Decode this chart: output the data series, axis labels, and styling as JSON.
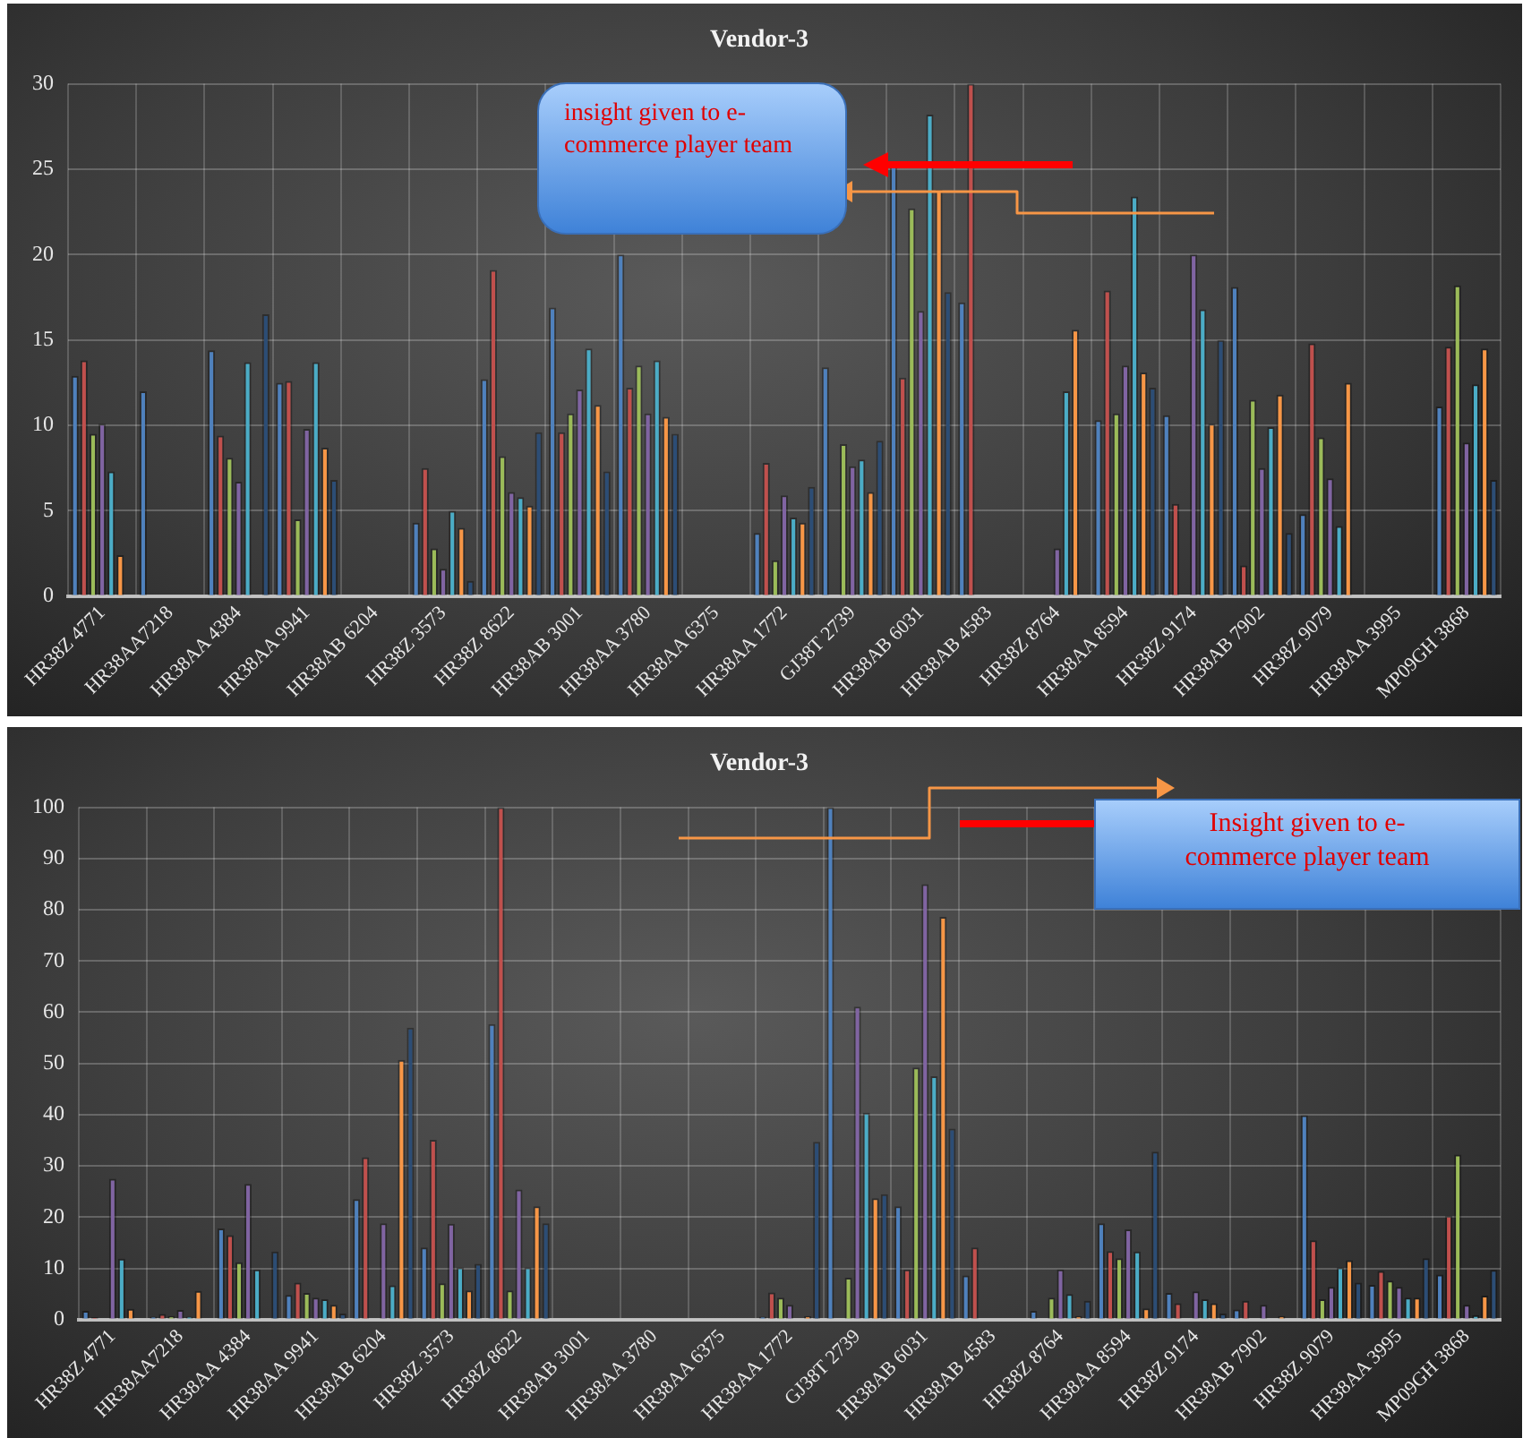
{
  "chart_data": [
    {
      "type": "bar",
      "title": "Vendor-3",
      "categories": [
        "HR38Z 4771",
        "HR38AA7218",
        "HR38AA 4384",
        "HR38AA 9941",
        "HR38AB 6204",
        "HR38Z 3573",
        "HR38Z 8622",
        "HR38AB 3001",
        "HR38AA 3780",
        "HR38AA 6375",
        "HR38AA 1772",
        "GJ38T 2739",
        "HR38AB 6031",
        "HR38AB 4583",
        "HR38Z 8764",
        "HR38AA 8594",
        "HR38Z 9174",
        "HR38AB 7902",
        "HR38Z 9079",
        "HR38AA 3995",
        "MP09GH 3868"
      ],
      "series": [
        {
          "color": "#4f81bd",
          "values": [
            12.9,
            12,
            14.4,
            12.5,
            null,
            4.3,
            12.7,
            16.9,
            20,
            null,
            3.7,
            13.4,
            25.2,
            17.2,
            null,
            10.3,
            10.6,
            18.1,
            4.8,
            null,
            11.1
          ]
        },
        {
          "color": "#c0504d",
          "values": [
            13.8,
            null,
            9.4,
            12.6,
            null,
            7.5,
            19.1,
            9.6,
            12.2,
            null,
            7.8,
            null,
            12.8,
            30,
            null,
            17.9,
            5.4,
            1.8,
            14.8,
            null,
            14.6
          ]
        },
        {
          "color": "#9bbb59",
          "values": [
            9.5,
            null,
            8.1,
            4.5,
            null,
            2.8,
            8.2,
            10.7,
            13.5,
            null,
            2.1,
            8.9,
            22.7,
            null,
            null,
            10.7,
            null,
            11.5,
            9.3,
            null,
            18.2
          ]
        },
        {
          "color": "#8064a2",
          "values": [
            10.1,
            null,
            6.7,
            9.8,
            null,
            1.6,
            6.1,
            12.1,
            10.7,
            null,
            5.9,
            7.6,
            16.7,
            null,
            2.8,
            13.5,
            20,
            7.5,
            6.9,
            null,
            9
          ]
        },
        {
          "color": "#4bacc6",
          "values": [
            7.3,
            null,
            13.7,
            13.7,
            null,
            5,
            5.8,
            14.5,
            13.8,
            null,
            4.6,
            8,
            28.2,
            null,
            12,
            23.4,
            16.8,
            9.9,
            4.1,
            null,
            12.4
          ]
        },
        {
          "color": "#f79646",
          "values": [
            2.4,
            null,
            null,
            8.7,
            null,
            4,
            5.3,
            11.2,
            10.5,
            null,
            4.3,
            6.1,
            23.8,
            null,
            15.6,
            13.1,
            10.1,
            11.8,
            12.5,
            null,
            14.5
          ]
        },
        {
          "color": "#2c4d75",
          "values": [
            null,
            null,
            16.5,
            6.8,
            null,
            0.9,
            9.6,
            7.3,
            9.5,
            null,
            6.4,
            9.1,
            17.8,
            null,
            null,
            12.2,
            15,
            3.7,
            null,
            null,
            6.8
          ]
        }
      ],
      "ylim": [
        0,
        30
      ],
      "yticks": [
        0,
        5,
        10,
        15,
        20,
        25,
        30
      ],
      "grid": true,
      "annotations": [
        "insight given to e-commerce player team"
      ]
    },
    {
      "type": "bar",
      "title": "Vendor-3",
      "categories": [
        "HR38Z 4771",
        "HR38AA7218",
        "HR38AA 4384",
        "HR38AA 9941",
        "HR38AB 6204",
        "HR38Z 3573",
        "HR38Z 8622",
        "HR38AB 3001",
        "HR38AA 3780",
        "HR38AA 6375",
        "HR38AA 1772",
        "GJ38T 2739",
        "HR38AB 6031",
        "HR38AB 4583",
        "HR38Z 8764",
        "HR38AA 8594",
        "HR38Z 9174",
        "HR38AB 7902",
        "HR38Z 9079",
        "HR38AA 3995",
        "MP09GH 3868"
      ],
      "series": [
        {
          "color": "#4f81bd",
          "values": [
            1.7,
            0.6,
            17.8,
            4.8,
            23.5,
            14.1,
            57.7,
            null,
            null,
            null,
            0.6,
            100,
            22.1,
            8.6,
            1.7,
            18.8,
            5.2,
            2,
            39.9,
            6.8,
            8.8
          ]
        },
        {
          "color": "#c0504d",
          "values": [
            0.5,
            1.1,
            16.5,
            7.2,
            31.7,
            35.1,
            100,
            null,
            null,
            null,
            5.3,
            null,
            9.8,
            14.1,
            null,
            13.4,
            3.2,
            3.7,
            15.5,
            9.5,
            20.3
          ]
        },
        {
          "color": "#9bbb59",
          "values": [
            null,
            0.7,
            11.2,
            5.2,
            null,
            7.1,
            5.7,
            null,
            null,
            null,
            4.3,
            8.2,
            49.2,
            null,
            4.3,
            12,
            null,
            null,
            4,
            7.6,
            32.2
          ]
        },
        {
          "color": "#8064a2",
          "values": [
            27.5,
            1.9,
            26.5,
            4.3,
            18.8,
            18.7,
            25.4,
            null,
            null,
            null,
            2.9,
            61.1,
            85,
            null,
            9.8,
            17.6,
            5.5,
            2.9,
            6.4,
            6.4,
            2.9
          ]
        },
        {
          "color": "#4bacc6",
          "values": [
            11.9,
            0.6,
            9.8,
            4,
            6.7,
            10.2,
            10.2,
            null,
            null,
            null,
            null,
            40.4,
            47.5,
            null,
            5,
            13.3,
            4,
            null,
            10.2,
            4.3,
            0.9
          ]
        },
        {
          "color": "#f79646",
          "values": [
            2.1,
            5.6,
            null,
            2.9,
            50.7,
            5.7,
            22.1,
            null,
            null,
            null,
            0.7,
            23.7,
            78.6,
            null,
            0.7,
            2.2,
            3.2,
            0.7,
            11.6,
            4.3,
            4.7
          ]
        },
        {
          "color": "#2c4d75",
          "values": [
            null,
            null,
            13.3,
            1.2,
            57,
            10.9,
            18.8,
            null,
            null,
            null,
            34.7,
            24.5,
            37.3,
            null,
            3.7,
            32.8,
            1.2,
            null,
            7.2,
            12,
            9.7
          ]
        }
      ],
      "ylim": [
        0,
        100
      ],
      "yticks": [
        0,
        10,
        20,
        30,
        40,
        50,
        60,
        70,
        80,
        90,
        100
      ],
      "grid": true,
      "annotations": [
        "Insight given to e-commerce player team"
      ]
    }
  ]
}
